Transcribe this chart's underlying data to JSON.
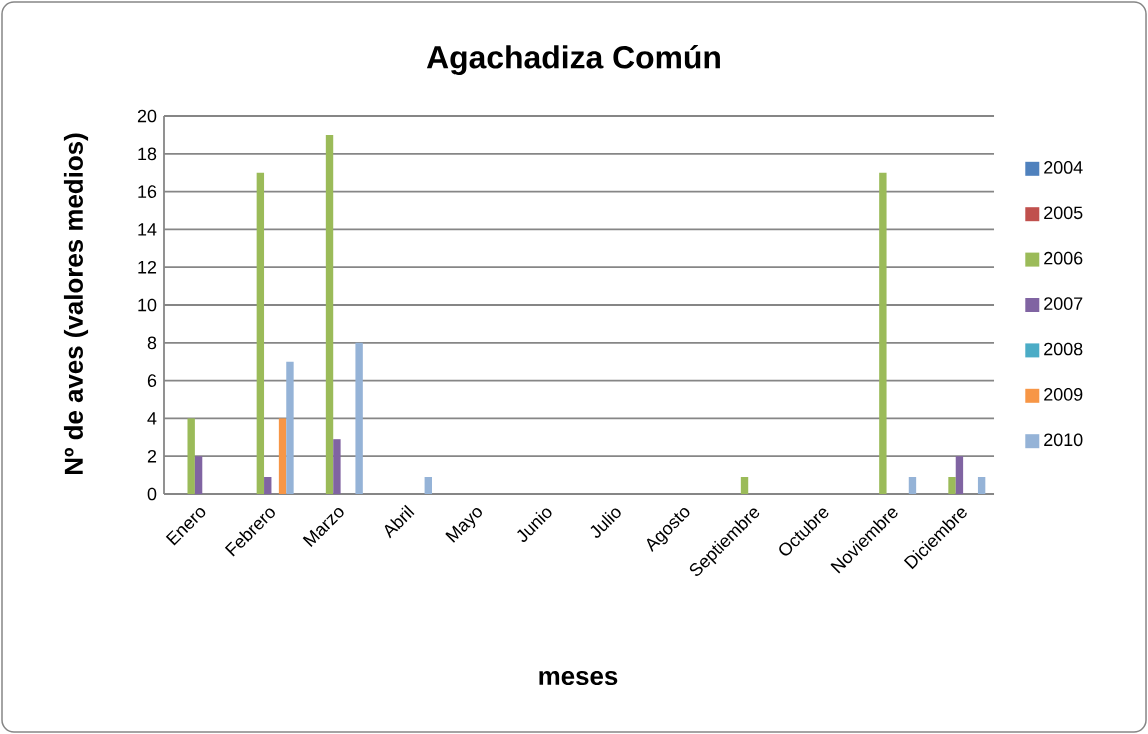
{
  "chart_data": {
    "type": "bar",
    "title": "Agachadiza Común",
    "xlabel": "meses",
    "ylabel": "Nº de aves (valores medios)",
    "categories": [
      "Enero",
      "Febrero",
      "Marzo",
      "Abril",
      "Mayo",
      "Junio",
      "Julio",
      "Agosto",
      "Septiembre",
      "Octubre",
      "Noviembre",
      "Diciembre"
    ],
    "series": [
      {
        "name": "2004",
        "color": "#4f81bd",
        "values": [
          null,
          null,
          null,
          null,
          null,
          null,
          null,
          null,
          null,
          null,
          null,
          null
        ]
      },
      {
        "name": "2005",
        "color": "#c0504d",
        "values": [
          null,
          null,
          null,
          null,
          null,
          null,
          null,
          null,
          null,
          null,
          null,
          null
        ]
      },
      {
        "name": "2006",
        "color": "#9bbb59",
        "values": [
          4,
          17,
          19,
          null,
          null,
          null,
          null,
          null,
          0.9,
          null,
          17,
          0.9
        ]
      },
      {
        "name": "2007",
        "color": "#8064a2",
        "values": [
          2,
          0.9,
          2.9,
          null,
          null,
          null,
          null,
          null,
          null,
          null,
          null,
          2
        ]
      },
      {
        "name": "2008",
        "color": "#4bacc6",
        "values": [
          null,
          null,
          null,
          null,
          null,
          null,
          null,
          null,
          null,
          null,
          null,
          null
        ]
      },
      {
        "name": "2009",
        "color": "#f79646",
        "values": [
          null,
          4,
          null,
          null,
          null,
          null,
          null,
          null,
          null,
          null,
          null,
          null
        ]
      },
      {
        "name": "2010",
        "color": "#95b3d7",
        "values": [
          null,
          7,
          8,
          0.9,
          null,
          null,
          null,
          null,
          null,
          null,
          0.9,
          0.9
        ]
      }
    ],
    "ylim": [
      0,
      20
    ],
    "yticks": [
      0,
      2,
      4,
      6,
      8,
      10,
      12,
      14,
      16,
      18,
      20
    ],
    "grid": "y",
    "legend": "right"
  }
}
